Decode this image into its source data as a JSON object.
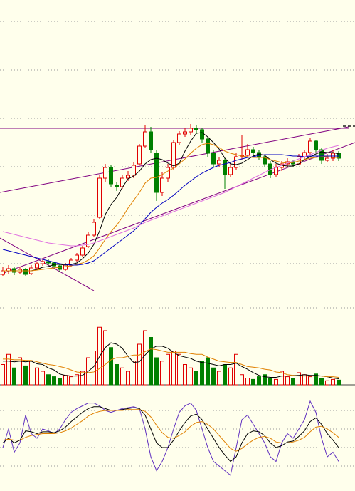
{
  "chart_data": [
    {
      "type": "candlestick",
      "open": [
        6.5,
        7.0,
        7.3,
        6.8,
        7.2,
        6.6,
        7.4,
        8.0,
        8.3,
        8.1,
        7.7,
        7.2,
        7.8,
        8.5,
        9.2,
        10.4,
        12.0,
        14.5,
        20.0,
        21.5,
        19.0,
        18.8,
        20.0,
        20.4,
        22.0,
        24.5,
        26.5,
        23.5,
        18.0,
        20.0,
        21.5,
        25.0,
        26.2,
        26.5,
        27.0,
        26.8,
        25.5,
        23.5,
        22.0,
        22.5,
        20.5,
        21.5,
        23.0,
        23.2,
        24.0,
        23.6,
        23.0,
        22.0,
        20.5,
        21.5,
        22.0,
        22.3,
        22.0,
        23.0,
        23.6,
        25.2,
        24.0,
        22.5,
        22.8,
        23.5
      ],
      "high": [
        7.5,
        7.8,
        7.6,
        7.6,
        7.4,
        7.8,
        8.3,
        8.6,
        8.6,
        8.3,
        7.9,
        8.1,
        8.8,
        9.5,
        10.5,
        12.4,
        14.3,
        20.4,
        22.0,
        21.8,
        19.5,
        20.5,
        21.0,
        22.3,
        24.8,
        27.5,
        27.2,
        24.0,
        20.8,
        22.0,
        25.4,
        26.6,
        27.0,
        27.6,
        27.4,
        27.0,
        25.8,
        24.0,
        23.0,
        22.8,
        22.0,
        23.5,
        26.0,
        24.8,
        24.4,
        24.0,
        23.2,
        22.4,
        22.0,
        22.4,
        22.8,
        22.6,
        23.4,
        24.0,
        25.6,
        25.4,
        24.2,
        23.4,
        23.9,
        23.8
      ],
      "low": [
        6.2,
        6.6,
        6.4,
        6.5,
        6.2,
        6.4,
        7.2,
        7.7,
        7.8,
        7.4,
        6.9,
        7.0,
        7.6,
        8.3,
        9.0,
        10.2,
        11.8,
        14.2,
        19.5,
        18.8,
        18.2,
        18.5,
        19.6,
        20.0,
        21.8,
        24.2,
        23.5,
        16.8,
        17.5,
        19.5,
        21.2,
        24.6,
        25.8,
        26.0,
        26.2,
        25.0,
        23.0,
        21.5,
        21.6,
        18.5,
        20.2,
        21.2,
        22.6,
        23.0,
        23.0,
        22.6,
        21.6,
        20.0,
        20.2,
        21.0,
        21.6,
        21.6,
        21.8,
        22.6,
        23.2,
        23.6,
        22.0,
        22.2,
        22.4,
        22.4
      ],
      "close": [
        7.0,
        7.3,
        6.8,
        7.2,
        6.5,
        7.4,
        8.0,
        8.3,
        8.1,
        7.7,
        7.2,
        7.8,
        8.5,
        9.2,
        10.2,
        12.0,
        13.8,
        20.0,
        21.5,
        19.2,
        18.8,
        20.0,
        20.4,
        21.8,
        24.5,
        26.5,
        24.0,
        18.0,
        20.0,
        21.5,
        25.0,
        26.2,
        26.5,
        27.0,
        26.8,
        25.5,
        23.5,
        22.0,
        22.5,
        20.5,
        21.5,
        23.0,
        23.2,
        24.0,
        23.6,
        23.0,
        22.0,
        20.5,
        21.5,
        22.0,
        22.3,
        22.0,
        23.0,
        23.6,
        25.2,
        24.0,
        22.5,
        22.8,
        23.5,
        22.8
      ],
      "up_color": "#e00000",
      "down_color": "#008000",
      "series": [
        {
          "color": "#000000",
          "values": [
            7.0,
            7.0,
            7.0,
            7.0,
            7.0,
            7.0,
            7.2,
            7.5,
            7.6,
            7.9,
            7.9,
            7.8,
            7.9,
            8.1,
            8.7,
            9.5,
            10.7,
            12.6,
            14.9,
            16.3,
            17.3,
            18.7,
            19.9,
            20.3,
            21.0,
            22.0,
            22.6,
            22.8,
            22.6,
            22.1,
            21.7,
            22.1,
            23.8,
            25.2,
            26.3,
            26.4,
            25.8,
            25.0,
            24.1,
            22.8,
            22.0,
            21.9,
            22.1,
            22.6,
            23.1,
            23.4,
            23.2,
            22.6,
            22.1,
            21.8,
            21.7,
            21.7,
            22.0,
            22.6,
            23.0,
            23.4,
            23.7,
            23.6,
            23.6,
            23.4
          ]
        },
        {
          "color": "#e08000",
          "values": [
            7.0,
            7.0,
            7.0,
            7.0,
            7.0,
            7.0,
            7.1,
            7.2,
            7.3,
            7.4,
            7.5,
            7.6,
            7.7,
            7.9,
            8.1,
            8.5,
            9.1,
            10.2,
            11.4,
            12.5,
            13.4,
            14.5,
            15.8,
            16.9,
            18.0,
            19.3,
            20.0,
            20.1,
            20.5,
            21.0,
            21.4,
            22.0,
            22.7,
            23.5,
            24.2,
            24.7,
            24.9,
            24.7,
            24.3,
            23.8,
            23.5,
            23.3,
            23.1,
            23.0,
            22.9,
            22.9,
            22.9,
            22.6,
            22.4,
            22.2,
            22.1,
            22.2,
            22.4,
            22.6,
            22.8,
            22.9,
            23.0,
            23.0,
            22.9,
            22.9
          ]
        },
        {
          "color": "#0000c0",
          "values": [
            10.0,
            9.8,
            9.6,
            9.4,
            9.2,
            9.0,
            8.8,
            8.6,
            8.4,
            8.2,
            8.0,
            7.9,
            7.8,
            7.8,
            7.9,
            8.1,
            8.4,
            9.0,
            9.6,
            10.2,
            10.8,
            11.4,
            12.0,
            12.6,
            13.4,
            14.3,
            15.2,
            15.9,
            16.5,
            17.0,
            17.6,
            18.3,
            19.0,
            19.6,
            20.2,
            20.7,
            21.1,
            21.5,
            21.8,
            22.0,
            22.2,
            22.5,
            22.7,
            22.9,
            23.0,
            23.2,
            23.3,
            23.3,
            23.3,
            23.3,
            23.2,
            23.1,
            23.1,
            23.0,
            23.1,
            23.1,
            23.1,
            23.1,
            23.1,
            23.1
          ]
        },
        {
          "color": "#e070e0",
          "values": [
            12.5,
            12.3,
            12.1,
            11.9,
            11.7,
            11.5,
            11.3,
            11.1,
            10.9,
            10.8,
            10.7,
            10.6,
            10.5,
            10.5,
            10.6,
            10.7,
            10.9,
            11.2,
            11.5,
            11.8,
            12.1,
            12.4,
            12.7,
            13.0,
            13.4,
            13.8,
            14.1,
            14.4,
            14.7,
            15.0,
            15.3,
            15.6,
            15.9,
            16.2,
            16.5,
            16.8,
            17.1,
            17.4,
            17.7,
            18.0,
            18.4,
            18.8,
            19.2,
            19.6,
            20.0,
            20.4,
            20.8,
            21.2,
            21.5,
            21.8,
            22.1,
            22.4,
            22.7,
            23.0,
            23.3,
            23.6,
            23.9,
            24.2,
            24.4,
            24.6
          ]
        }
      ],
      "ylim": [
        2.5,
        45
      ],
      "yticks": [
        8,
        14.8,
        21.6,
        28.4,
        35.2,
        42
      ],
      "grid": true
    },
    {
      "type": "bar",
      "values": [
        30,
        45,
        25,
        40,
        28,
        35,
        25,
        20,
        15,
        12,
        10,
        14,
        12,
        15,
        20,
        40,
        50,
        85,
        80,
        55,
        30,
        25,
        20,
        35,
        60,
        80,
        70,
        40,
        35,
        45,
        50,
        45,
        30,
        25,
        20,
        35,
        40,
        25,
        20,
        30,
        25,
        45,
        15,
        10,
        8,
        12,
        15,
        10,
        8,
        20,
        12,
        10,
        18,
        15,
        12,
        16,
        10,
        6,
        8,
        7
      ],
      "up_color": "#e00000",
      "down_color": "#008000",
      "series": [
        {
          "color": "#000000",
          "values": [
            35,
            35,
            34,
            35,
            34,
            35,
            31,
            30,
            25,
            22,
            16,
            14,
            13,
            13,
            14,
            20,
            27,
            42,
            55,
            62,
            60,
            54,
            42,
            33,
            34,
            44,
            53,
            57,
            57,
            54,
            48,
            43,
            41,
            39,
            35,
            33,
            32,
            30,
            28,
            30,
            30,
            32,
            27,
            23,
            18,
            14,
            12,
            11,
            11,
            13,
            13,
            14,
            14,
            15,
            14,
            14,
            13,
            12,
            10,
            9
          ]
        },
        {
          "color": "#e08000",
          "values": [
            38,
            38,
            37,
            37,
            36,
            36,
            34,
            32,
            30,
            29,
            27,
            25,
            22,
            19,
            18,
            18,
            19,
            24,
            30,
            37,
            40,
            40,
            42,
            44,
            44,
            49,
            53,
            52,
            50,
            48,
            48,
            48,
            48,
            46,
            45,
            45,
            41,
            38,
            35,
            34,
            33,
            33,
            30,
            27,
            26,
            25,
            23,
            22,
            19,
            18,
            15,
            14,
            13,
            13,
            13,
            13,
            13,
            12,
            12,
            11
          ]
        }
      ],
      "ylim": [
        0,
        100
      ]
    },
    {
      "type": "line",
      "series": [
        {
          "color": "#6030c0",
          "values": [
            40,
            60,
            35,
            45,
            75,
            55,
            50,
            60,
            58,
            55,
            60,
            70,
            78,
            82,
            85,
            88,
            88,
            85,
            80,
            78,
            80,
            82,
            83,
            84,
            82,
            60,
            30,
            15,
            25,
            40,
            60,
            78,
            85,
            88,
            80,
            60,
            40,
            25,
            20,
            15,
            10,
            40,
            70,
            75,
            65,
            55,
            45,
            30,
            25,
            45,
            55,
            50,
            60,
            70,
            90,
            78,
            50,
            30,
            35,
            25
          ]
        },
        {
          "color": "#000000",
          "values": [
            45,
            50,
            45,
            48,
            58,
            57,
            55,
            57,
            57,
            56,
            58,
            62,
            68,
            73,
            78,
            82,
            84,
            84,
            82,
            80,
            80,
            81,
            82,
            83,
            82,
            75,
            60,
            45,
            40,
            40,
            48,
            58,
            67,
            74,
            76,
            70,
            60,
            50,
            40,
            32,
            25,
            30,
            45,
            55,
            58,
            57,
            53,
            45,
            40,
            42,
            46,
            47,
            52,
            58,
            68,
            72,
            65,
            55,
            48,
            40
          ]
        },
        {
          "color": "#e08000",
          "values": [
            48,
            49,
            48,
            48,
            51,
            53,
            54,
            55,
            55,
            55,
            56,
            58,
            61,
            65,
            69,
            74,
            77,
            79,
            80,
            80,
            80,
            80,
            81,
            81,
            81,
            79,
            73,
            64,
            56,
            51,
            50,
            53,
            57,
            63,
            67,
            68,
            65,
            60,
            53,
            46,
            39,
            36,
            39,
            44,
            48,
            51,
            52,
            50,
            46,
            45,
            45,
            46,
            48,
            51,
            57,
            62,
            63,
            60,
            56,
            51
          ]
        }
      ],
      "ylim": [
        0,
        100
      ],
      "yticks": [
        20,
        40,
        60,
        80
      ],
      "grid": true
    }
  ]
}
